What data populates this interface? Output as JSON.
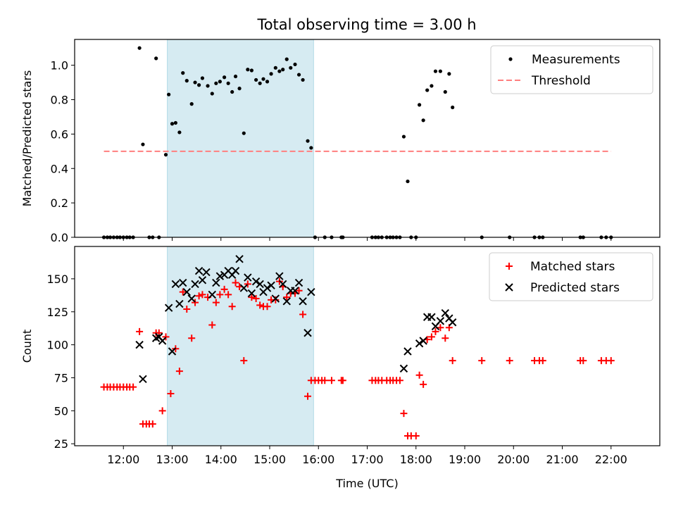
{
  "title": "Total observing time = 3.00 h",
  "colors": {
    "measurement": "#000000",
    "threshold": "#ff7f7f",
    "matched": "#ff0000",
    "predicted": "#000000",
    "shade": "#add8e6"
  },
  "chart_data": [
    {
      "type": "scatter",
      "name": "top",
      "ylabel": "Matched/Predicted stars",
      "xlim": [
        11.0,
        23.0
      ],
      "ylim": [
        0.0,
        1.15
      ],
      "yticks": [
        0.0,
        0.2,
        0.4,
        0.6,
        0.8,
        1.0
      ],
      "ytick_labels": [
        "0.0",
        "0.2",
        "0.4",
        "0.6",
        "0.8",
        "1.0"
      ],
      "shaded_span": [
        12.9,
        15.9
      ],
      "legend_position": "top-right",
      "series": [
        {
          "name": "Measurements",
          "marker": "dot",
          "points": [
            [
              11.6,
              0
            ],
            [
              11.67,
              0
            ],
            [
              11.73,
              0
            ],
            [
              11.8,
              0
            ],
            [
              11.87,
              0
            ],
            [
              11.93,
              0
            ],
            [
              12.0,
              0
            ],
            [
              12.07,
              0
            ],
            [
              12.13,
              0
            ],
            [
              12.2,
              0
            ],
            [
              12.33,
              1.1
            ],
            [
              12.4,
              0.54
            ],
            [
              12.53,
              0
            ],
            [
              12.6,
              0
            ],
            [
              12.67,
              1.04
            ],
            [
              12.73,
              0
            ],
            [
              12.87,
              0.48
            ],
            [
              12.93,
              0.83
            ],
            [
              13.0,
              0.66
            ],
            [
              13.07,
              0.665
            ],
            [
              13.15,
              0.61
            ],
            [
              13.22,
              0.955
            ],
            [
              13.3,
              0.91
            ],
            [
              13.4,
              0.775
            ],
            [
              13.47,
              0.9
            ],
            [
              13.55,
              0.885
            ],
            [
              13.62,
              0.925
            ],
            [
              13.73,
              0.88
            ],
            [
              13.82,
              0.835
            ],
            [
              13.9,
              0.895
            ],
            [
              13.98,
              0.905
            ],
            [
              14.07,
              0.93
            ],
            [
              14.15,
              0.895
            ],
            [
              14.23,
              0.845
            ],
            [
              14.3,
              0.935
            ],
            [
              14.38,
              0.865
            ],
            [
              14.47,
              0.605
            ],
            [
              14.55,
              0.975
            ],
            [
              14.63,
              0.97
            ],
            [
              14.72,
              0.915
            ],
            [
              14.8,
              0.895
            ],
            [
              14.87,
              0.92
            ],
            [
              14.95,
              0.905
            ],
            [
              15.03,
              0.95
            ],
            [
              15.12,
              0.985
            ],
            [
              15.2,
              0.965
            ],
            [
              15.27,
              0.975
            ],
            [
              15.35,
              1.035
            ],
            [
              15.43,
              0.985
            ],
            [
              15.52,
              1.005
            ],
            [
              15.6,
              0.945
            ],
            [
              15.68,
              0.915
            ],
            [
              15.78,
              0.56
            ],
            [
              15.85,
              0.52
            ],
            [
              15.93,
              0
            ],
            [
              16.13,
              0
            ],
            [
              16.27,
              0
            ],
            [
              16.47,
              0
            ],
            [
              16.5,
              0
            ],
            [
              17.1,
              0
            ],
            [
              17.17,
              0
            ],
            [
              17.23,
              0
            ],
            [
              17.3,
              0
            ],
            [
              17.4,
              0
            ],
            [
              17.47,
              0
            ],
            [
              17.53,
              0
            ],
            [
              17.6,
              0
            ],
            [
              17.67,
              0
            ],
            [
              17.75,
              0.585
            ],
            [
              17.83,
              0.325
            ],
            [
              17.9,
              0
            ],
            [
              18.0,
              0
            ],
            [
              18.07,
              0.77
            ],
            [
              18.15,
              0.68
            ],
            [
              18.23,
              0.855
            ],
            [
              18.32,
              0.88
            ],
            [
              18.4,
              0.965
            ],
            [
              18.5,
              0.965
            ],
            [
              18.6,
              0.845
            ],
            [
              18.68,
              0.95
            ],
            [
              18.75,
              0.755
            ],
            [
              19.35,
              0
            ],
            [
              19.92,
              0
            ],
            [
              20.43,
              0
            ],
            [
              20.53,
              0
            ],
            [
              20.6,
              0
            ],
            [
              21.37,
              0
            ],
            [
              21.43,
              0
            ],
            [
              21.8,
              0
            ],
            [
              21.9,
              0
            ],
            [
              22.0,
              0
            ]
          ]
        },
        {
          "name": "Threshold",
          "marker": "dashed-line",
          "points": [
            [
              11.6,
              0.5
            ],
            [
              22.0,
              0.5
            ]
          ]
        }
      ]
    },
    {
      "type": "scatter",
      "name": "bottom",
      "xlabel": "Time (UTC)",
      "ylabel": "Count",
      "xlim": [
        11.0,
        23.0
      ],
      "ylim": [
        23.5,
        174.5
      ],
      "xticks": [
        12,
        13,
        14,
        15,
        16,
        17,
        18,
        19,
        20,
        21,
        22
      ],
      "xtick_labels": [
        "12:00",
        "13:00",
        "14:00",
        "15:00",
        "16:00",
        "17:00",
        "18:00",
        "19:00",
        "20:00",
        "21:00",
        "22:00"
      ],
      "yticks": [
        25,
        50,
        75,
        100,
        125,
        150
      ],
      "ytick_labels": [
        "25",
        "50",
        "75",
        "100",
        "125",
        "150"
      ],
      "shaded_span": [
        12.9,
        15.9
      ],
      "legend_position": "top-right",
      "series": [
        {
          "name": "Matched stars",
          "marker": "plus",
          "points": [
            [
              11.6,
              68
            ],
            [
              11.67,
              68
            ],
            [
              11.73,
              68
            ],
            [
              11.8,
              68
            ],
            [
              11.87,
              68
            ],
            [
              11.93,
              68
            ],
            [
              12.0,
              68
            ],
            [
              12.07,
              68
            ],
            [
              12.13,
              68
            ],
            [
              12.2,
              68
            ],
            [
              12.33,
              110
            ],
            [
              12.4,
              40
            ],
            [
              12.47,
              40
            ],
            [
              12.53,
              40
            ],
            [
              12.6,
              40
            ],
            [
              12.67,
              109
            ],
            [
              12.73,
              109
            ],
            [
              12.8,
              50
            ],
            [
              12.87,
              106
            ],
            [
              12.97,
              63
            ],
            [
              13.07,
              97
            ],
            [
              13.15,
              80
            ],
            [
              13.22,
              140
            ],
            [
              13.3,
              127
            ],
            [
              13.4,
              105
            ],
            [
              13.47,
              132
            ],
            [
              13.55,
              137
            ],
            [
              13.62,
              138
            ],
            [
              13.73,
              136
            ],
            [
              13.82,
              115
            ],
            [
              13.9,
              132
            ],
            [
              13.98,
              138
            ],
            [
              14.07,
              142
            ],
            [
              14.15,
              138
            ],
            [
              14.23,
              129
            ],
            [
              14.3,
              147
            ],
            [
              14.38,
              144
            ],
            [
              14.47,
              88
            ],
            [
              14.55,
              146
            ],
            [
              14.63,
              136
            ],
            [
              14.72,
              135
            ],
            [
              14.8,
              130
            ],
            [
              14.87,
              129
            ],
            [
              14.95,
              129
            ],
            [
              15.03,
              134
            ],
            [
              15.12,
              134
            ],
            [
              15.2,
              148
            ],
            [
              15.27,
              144
            ],
            [
              15.35,
              136
            ],
            [
              15.43,
              139
            ],
            [
              15.52,
              139
            ],
            [
              15.6,
              141
            ],
            [
              15.68,
              123
            ],
            [
              15.78,
              61
            ],
            [
              15.85,
              73
            ],
            [
              15.93,
              73
            ],
            [
              16.0,
              73
            ],
            [
              16.07,
              73
            ],
            [
              16.13,
              73
            ],
            [
              16.27,
              73
            ],
            [
              16.47,
              73
            ],
            [
              16.5,
              73
            ],
            [
              17.1,
              73
            ],
            [
              17.17,
              73
            ],
            [
              17.23,
              73
            ],
            [
              17.3,
              73
            ],
            [
              17.4,
              73
            ],
            [
              17.47,
              73
            ],
            [
              17.53,
              73
            ],
            [
              17.6,
              73
            ],
            [
              17.67,
              73
            ],
            [
              17.75,
              48
            ],
            [
              17.83,
              31
            ],
            [
              17.9,
              31
            ],
            [
              18.0,
              31
            ],
            [
              18.07,
              77
            ],
            [
              18.15,
              70
            ],
            [
              18.23,
              104
            ],
            [
              18.32,
              106
            ],
            [
              18.4,
              110
            ],
            [
              18.5,
              113
            ],
            [
              18.6,
              105
            ],
            [
              18.68,
              113
            ],
            [
              18.75,
              88
            ],
            [
              19.35,
              88
            ],
            [
              19.92,
              88
            ],
            [
              20.43,
              88
            ],
            [
              20.53,
              88
            ],
            [
              20.6,
              88
            ],
            [
              21.37,
              88
            ],
            [
              21.43,
              88
            ],
            [
              21.8,
              88
            ],
            [
              21.9,
              88
            ],
            [
              22.0,
              88
            ]
          ]
        },
        {
          "name": "Predicted stars",
          "marker": "x",
          "points": [
            [
              12.33,
              100
            ],
            [
              12.4,
              74
            ],
            [
              12.67,
              105
            ],
            [
              12.73,
              106
            ],
            [
              12.8,
              103
            ],
            [
              12.93,
              128
            ],
            [
              13.0,
              95
            ],
            [
              13.07,
              146
            ],
            [
              13.15,
              131
            ],
            [
              13.22,
              147
            ],
            [
              13.3,
              140
            ],
            [
              13.4,
              135
            ],
            [
              13.47,
              146
            ],
            [
              13.55,
              156
            ],
            [
              13.62,
              149
            ],
            [
              13.7,
              155
            ],
            [
              13.82,
              138
            ],
            [
              13.9,
              147
            ],
            [
              13.98,
              152
            ],
            [
              14.07,
              153
            ],
            [
              14.15,
              156
            ],
            [
              14.23,
              153
            ],
            [
              14.3,
              156
            ],
            [
              14.38,
              165
            ],
            [
              14.47,
              143
            ],
            [
              14.55,
              151
            ],
            [
              14.63,
              139
            ],
            [
              14.72,
              148
            ],
            [
              14.8,
              146
            ],
            [
              14.87,
              140
            ],
            [
              14.95,
              143
            ],
            [
              15.03,
              145
            ],
            [
              15.12,
              135
            ],
            [
              15.2,
              152
            ],
            [
              15.27,
              146
            ],
            [
              15.35,
              133
            ],
            [
              15.43,
              141
            ],
            [
              15.52,
              141
            ],
            [
              15.6,
              147
            ],
            [
              15.68,
              133
            ],
            [
              15.78,
              109
            ],
            [
              15.85,
              140
            ],
            [
              17.75,
              82
            ],
            [
              17.83,
              95
            ],
            [
              18.07,
              101
            ],
            [
              18.15,
              103
            ],
            [
              18.23,
              121
            ],
            [
              18.32,
              121
            ],
            [
              18.4,
              114
            ],
            [
              18.5,
              118
            ],
            [
              18.6,
              124
            ],
            [
              18.68,
              120
            ],
            [
              18.75,
              117
            ]
          ]
        }
      ]
    }
  ]
}
